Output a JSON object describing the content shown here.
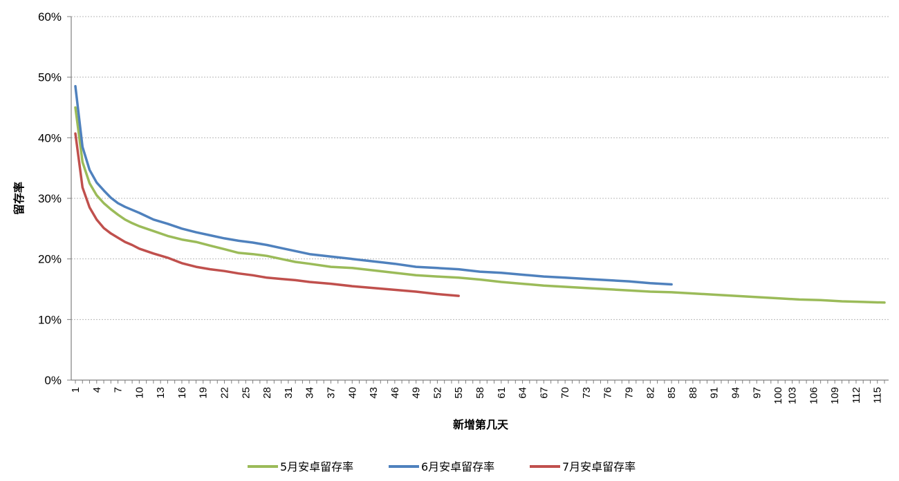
{
  "chart_data": {
    "type": "line",
    "xlabel": "新增第几天",
    "ylabel": "留存率",
    "xlim": [
      1,
      115
    ],
    "ylim": [
      0,
      60
    ],
    "y_ticks": [
      "0%",
      "10%",
      "20%",
      "30%",
      "40%",
      "50%",
      "60%"
    ],
    "x_tick_labels": [
      1,
      4,
      7,
      10,
      13,
      16,
      19,
      22,
      25,
      28,
      31,
      34,
      37,
      40,
      43,
      46,
      49,
      52,
      55,
      58,
      61,
      64,
      67,
      70,
      73,
      76,
      79,
      82,
      85,
      88,
      91,
      94,
      97,
      100,
      103,
      106,
      109,
      112,
      115
    ],
    "x_tick_positions": [
      1,
      4,
      7,
      10,
      13,
      16,
      19,
      22,
      25,
      28,
      31,
      34,
      37,
      40,
      43,
      46,
      49,
      52,
      55,
      58,
      61,
      64,
      67,
      70,
      73,
      76,
      79,
      82,
      85,
      88,
      91,
      94,
      97,
      100,
      102,
      105,
      108,
      111,
      114
    ],
    "grid": true,
    "legend_position": "bottom",
    "series": [
      {
        "name": "5月安卓留存率",
        "color": "#9BBB59",
        "x": [
          1,
          2,
          3,
          4,
          5,
          6,
          7,
          8,
          9,
          10,
          12,
          14,
          16,
          18,
          20,
          22,
          24,
          26,
          28,
          30,
          32,
          34,
          37,
          40,
          43,
          46,
          49,
          52,
          55,
          58,
          61,
          64,
          67,
          70,
          73,
          76,
          79,
          82,
          85,
          88,
          91,
          94,
          97,
          100,
          103,
          106,
          109,
          112,
          115
        ],
        "y": [
          45,
          36,
          32.5,
          30.5,
          29.2,
          28.2,
          27.3,
          26.5,
          25.9,
          25.4,
          24.6,
          23.8,
          23.2,
          22.8,
          22.2,
          21.6,
          21.0,
          20.8,
          20.5,
          20.0,
          19.5,
          19.2,
          18.7,
          18.5,
          18.1,
          17.7,
          17.3,
          17.1,
          16.9,
          16.6,
          16.2,
          15.9,
          15.6,
          15.4,
          15.2,
          15.0,
          14.8,
          14.6,
          14.5,
          14.3,
          14.1,
          13.9,
          13.7,
          13.5,
          13.3,
          13.2,
          13.0,
          12.9,
          12.8
        ]
      },
      {
        "name": "6月安卓留存率",
        "color": "#4F81BD",
        "x": [
          1,
          2,
          3,
          4,
          5,
          6,
          7,
          8,
          9,
          10,
          12,
          14,
          16,
          18,
          20,
          22,
          24,
          26,
          28,
          30,
          32,
          34,
          37,
          40,
          43,
          46,
          49,
          52,
          55,
          58,
          61,
          64,
          67,
          70,
          73,
          76,
          79,
          82,
          85
        ],
        "y": [
          48.5,
          38.5,
          34.7,
          32.6,
          31.3,
          30.1,
          29.2,
          28.6,
          28.1,
          27.6,
          26.5,
          25.8,
          25.0,
          24.4,
          23.9,
          23.4,
          23.0,
          22.7,
          22.3,
          21.8,
          21.3,
          20.8,
          20.4,
          20.0,
          19.6,
          19.2,
          18.7,
          18.5,
          18.3,
          17.9,
          17.7,
          17.4,
          17.1,
          16.9,
          16.7,
          16.5,
          16.3,
          16.0,
          15.8
        ]
      },
      {
        "name": "7月安卓留存率",
        "color": "#C0504D",
        "x": [
          1,
          2,
          3,
          4,
          5,
          6,
          7,
          8,
          9,
          10,
          12,
          14,
          16,
          18,
          20,
          22,
          24,
          26,
          28,
          30,
          32,
          34,
          37,
          40,
          43,
          46,
          49,
          52,
          55
        ],
        "y": [
          40.7,
          31.8,
          28.5,
          26.5,
          25.1,
          24.2,
          23.5,
          22.8,
          22.3,
          21.7,
          20.9,
          20.2,
          19.3,
          18.7,
          18.3,
          18.0,
          17.6,
          17.3,
          16.9,
          16.7,
          16.5,
          16.2,
          15.9,
          15.5,
          15.2,
          14.9,
          14.6,
          14.2,
          13.9
        ]
      }
    ]
  }
}
